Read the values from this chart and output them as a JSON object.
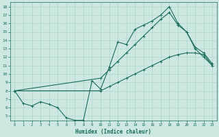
{
  "xlabel": "Humidex (Indice chaleur)",
  "ylabel": "",
  "xlim": [
    -0.5,
    23.5
  ],
  "ylim": [
    4.5,
    18.5
  ],
  "xticks": [
    0,
    1,
    2,
    3,
    4,
    5,
    6,
    7,
    8,
    9,
    10,
    11,
    12,
    13,
    14,
    15,
    16,
    17,
    18,
    19,
    20,
    21,
    22,
    23
  ],
  "yticks": [
    5,
    6,
    7,
    8,
    9,
    10,
    11,
    12,
    13,
    14,
    15,
    16,
    17,
    18
  ],
  "bg_color": "#cce8e0",
  "grid_color": "#aed4cc",
  "line_color": "#1a6b5a",
  "line1_x": [
    0,
    1,
    2,
    3,
    4,
    5,
    6,
    7,
    8,
    9,
    10,
    11,
    12,
    13,
    14,
    15,
    16,
    17,
    18,
    19,
    20,
    21,
    22,
    23
  ],
  "line1_y": [
    8.0,
    6.5,
    6.2,
    6.7,
    6.4,
    6.0,
    4.8,
    4.5,
    4.5,
    9.2,
    8.2,
    10.8,
    13.8,
    13.5,
    15.3,
    15.8,
    16.3,
    17.0,
    18.0,
    16.0,
    15.0,
    13.0,
    12.0,
    11.0
  ],
  "line2_x": [
    0,
    10,
    11,
    12,
    13,
    14,
    15,
    16,
    17,
    18,
    19,
    20,
    21,
    22,
    23
  ],
  "line2_y": [
    8.0,
    9.5,
    10.5,
    11.5,
    12.5,
    13.5,
    14.5,
    15.5,
    16.5,
    17.3,
    15.8,
    15.0,
    13.2,
    12.5,
    11.2
  ],
  "line3_x": [
    0,
    10,
    11,
    12,
    13,
    14,
    15,
    16,
    17,
    18,
    19,
    20,
    21,
    22,
    23
  ],
  "line3_y": [
    8.0,
    8.0,
    8.5,
    9.0,
    9.5,
    10.0,
    10.5,
    11.0,
    11.5,
    12.0,
    12.3,
    12.5,
    12.5,
    12.3,
    11.0
  ]
}
